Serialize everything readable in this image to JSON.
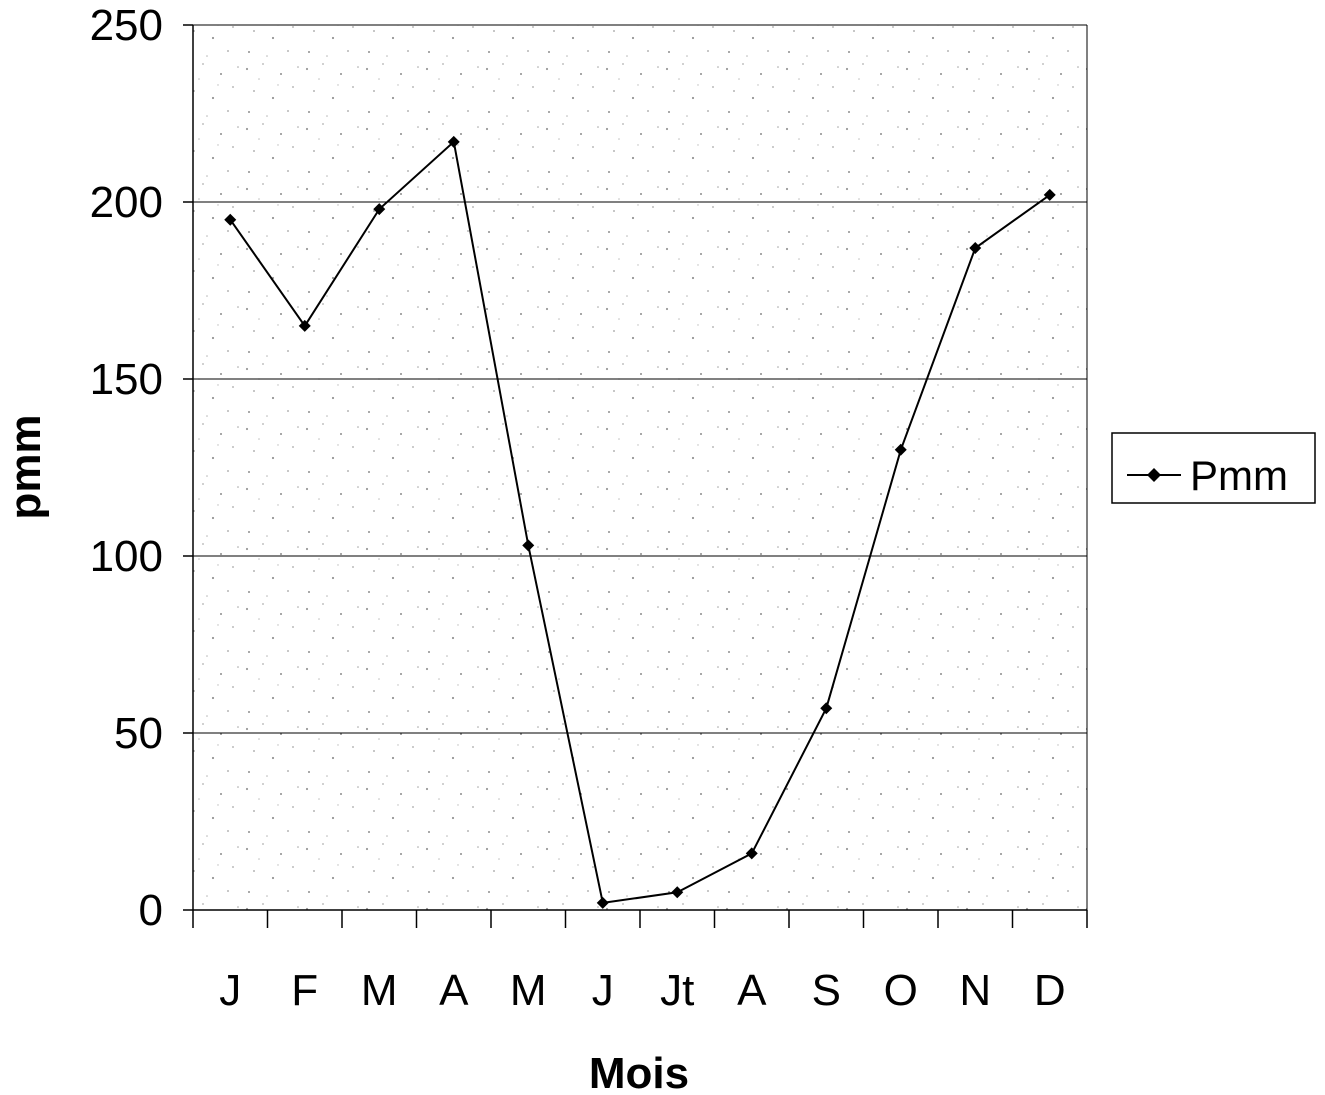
{
  "chart_data": {
    "type": "line",
    "title": "",
    "xlabel": "Mois",
    "ylabel": "pmm",
    "categories": [
      "J",
      "F",
      "M",
      "A",
      "M",
      "J",
      "Jt",
      "A",
      "S",
      "O",
      "N",
      "D"
    ],
    "series": [
      {
        "name": "Pmm",
        "values": [
          195,
          165,
          198,
          217,
          103,
          2,
          5,
          16,
          57,
          130,
          187,
          202
        ]
      }
    ],
    "ylim": [
      0,
      250
    ],
    "yticks": [
      "0",
      "50",
      "100",
      "150",
      "200",
      "250"
    ],
    "grid": true,
    "legend": "right",
    "colors": {
      "line": "#000000",
      "grid": "#000000",
      "background": "#d9d9d9"
    }
  }
}
